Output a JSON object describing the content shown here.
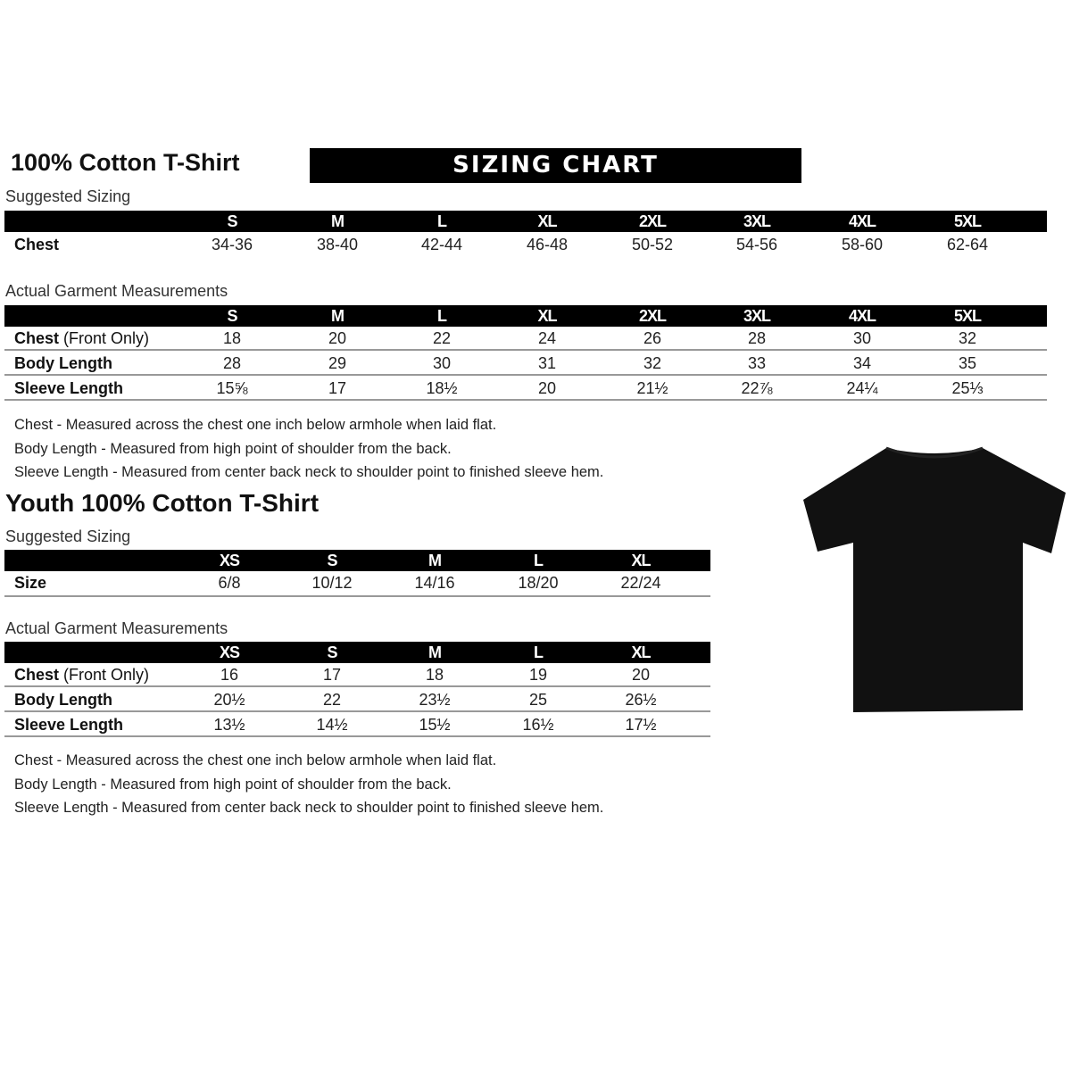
{
  "adult": {
    "title": "100% Cotton T-Shirt",
    "banner": "SIZING CHART",
    "suggested_label": "Suggested Sizing",
    "sizes": [
      "S",
      "M",
      "L",
      "XL",
      "2XL",
      "3XL",
      "4XL",
      "5XL"
    ],
    "suggested_rows": [
      {
        "label": "Chest",
        "values": [
          "34-36",
          "38-40",
          "42-44",
          "46-48",
          "50-52",
          "54-56",
          "58-60",
          "62-64"
        ]
      }
    ],
    "actual_label": "Actual Garment Measurements",
    "actual_rows": [
      {
        "label": "Chest",
        "label_note": "(Front Only)",
        "values": [
          "18",
          "20",
          "22",
          "24",
          "26",
          "28",
          "30",
          "32"
        ]
      },
      {
        "label": "Body Length",
        "label_note": "",
        "values": [
          "28",
          "29",
          "30",
          "31",
          "32",
          "33",
          "34",
          "35"
        ]
      },
      {
        "label": "Sleeve Length",
        "label_note": "",
        "values": [
          "15⅝",
          "17",
          "18½",
          "20",
          "21½",
          "22⅞",
          "24¼",
          "25⅓"
        ]
      }
    ],
    "notes": [
      "Chest - Measured across the chest one inch below armhole when laid flat.",
      "Body Length - Measured from high point of shoulder from the back.",
      "Sleeve Length - Measured from center back neck to shoulder point to finished sleeve hem."
    ]
  },
  "youth": {
    "title": "Youth 100% Cotton T-Shirt",
    "suggested_label": "Suggested Sizing",
    "sizes": [
      "XS",
      "S",
      "M",
      "L",
      "XL"
    ],
    "suggested_rows": [
      {
        "label": "Size",
        "values": [
          "6/8",
          "10/12",
          "14/16",
          "18/20",
          "22/24"
        ]
      }
    ],
    "actual_label": "Actual Garment Measurements",
    "actual_rows": [
      {
        "label": "Chest",
        "label_note": "(Front Only)",
        "values": [
          "16",
          "17",
          "18",
          "19",
          "20"
        ]
      },
      {
        "label": "Body Length",
        "label_note": "",
        "values": [
          "20½",
          "22",
          "23½",
          "25",
          "26½"
        ]
      },
      {
        "label": "Sleeve Length",
        "label_note": "",
        "values": [
          "13½",
          "14½",
          "15½",
          "16½",
          "17½"
        ]
      }
    ],
    "notes": [
      "Chest - Measured across the chest one inch below armhole when laid flat.",
      "Body Length - Measured from high point of shoulder from the back.",
      "Sleeve Length - Measured from center back neck to shoulder point to finished sleeve hem."
    ]
  },
  "image": {
    "icon": "black-tshirt-icon",
    "color": "#111111"
  }
}
